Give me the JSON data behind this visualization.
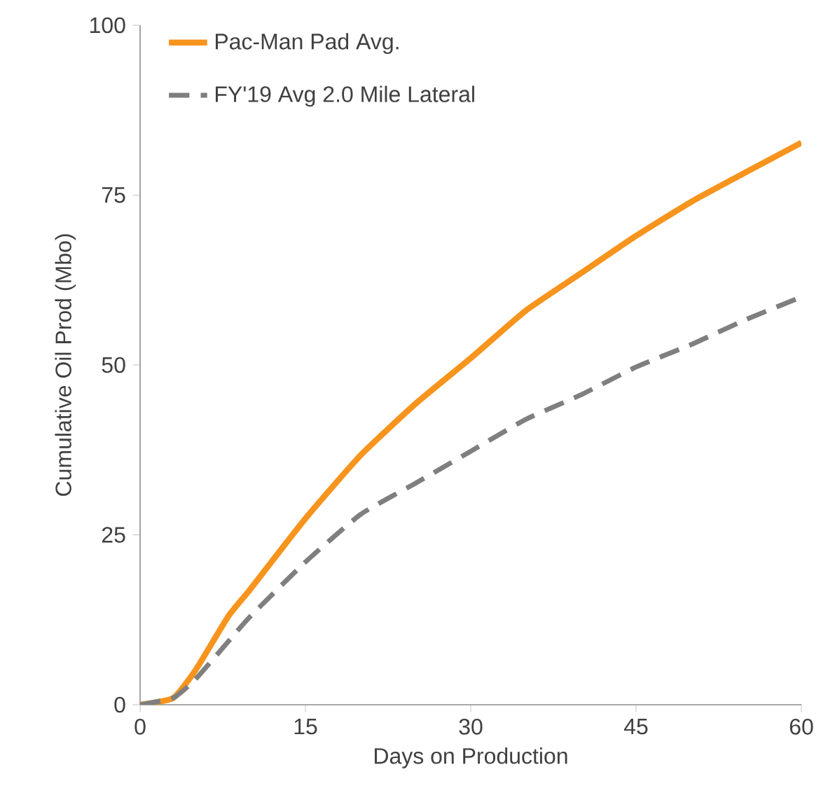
{
  "chart_data": {
    "type": "line",
    "xlabel": "Days on Production",
    "ylabel": "Cumulative Oil Prod (Mbo)",
    "xlim": [
      0,
      60
    ],
    "ylim": [
      0,
      100
    ],
    "xticks": [
      0,
      15,
      30,
      45,
      60
    ],
    "yticks": [
      0,
      25,
      50,
      75,
      100
    ],
    "grid": false,
    "legend": "top left",
    "series": [
      {
        "name": "Pac-Man Pad Avg.",
        "color": "#f7941d",
        "line_style": "solid",
        "x": [
          0,
          3,
          5,
          8,
          10,
          15,
          20,
          25,
          30,
          35,
          40,
          45,
          50,
          55,
          60
        ],
        "values": [
          0,
          1,
          5,
          13,
          17,
          27.4,
          36.7,
          44.3,
          51,
          58,
          63.5,
          69,
          74,
          78.4,
          82.7
        ]
      },
      {
        "name": "FY'19 Avg 2.0 Mile Lateral",
        "color": "#7f7f7f",
        "line_style": "dashed",
        "x": [
          0,
          3,
          5,
          8,
          10,
          15,
          20,
          25,
          30,
          35,
          40,
          45,
          50,
          55,
          60
        ],
        "values": [
          0,
          1,
          3.7,
          9.3,
          13,
          21,
          28,
          32.6,
          37.3,
          42,
          45.6,
          49.7,
          53,
          56.7,
          60
        ]
      }
    ]
  }
}
